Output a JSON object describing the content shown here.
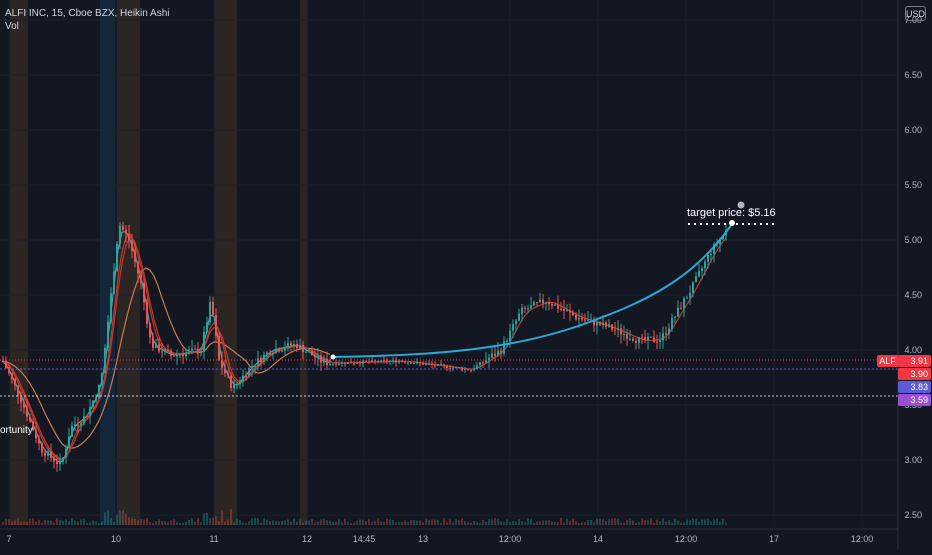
{
  "legend": {
    "symbol_line": "ALFI INC, 15, Cboe BZX, Heikin Ashi",
    "volume_label": "Vol"
  },
  "currency": "USD",
  "price_tags": {
    "symbol": "ALF",
    "last": "3.91",
    "line2": "3.90",
    "line3": "3.83",
    "line4": "3.59"
  },
  "annotation": {
    "target_label": "target price: $5.16",
    "note_fragment": "ortunity"
  },
  "colors": {
    "background": "#131722",
    "up": "#26a69a",
    "down": "#ef5350",
    "projection": "#29a9d6",
    "ma_orange": "#c77b52",
    "ma_red": "#c0392b",
    "ma_teal": "#4c9fa8",
    "tag_red": "#f23645",
    "tag_blue_purple": "#5b5bd6",
    "tag_purple": "#9c4fd6",
    "band_orange": "#6b4a2a",
    "band_blue": "#1e4a7a"
  },
  "chart_data": {
    "type": "candlestick",
    "y_axis": {
      "ticks": [
        "2.50",
        "3.00",
        "3.50",
        "4.00",
        "4.50",
        "5.00",
        "5.50",
        "6.00",
        "6.50",
        "7.00"
      ],
      "range": [
        2.45,
        7.05
      ]
    },
    "x_axis": {
      "ticks": [
        "7",
        "10",
        "11",
        "12",
        "14:45",
        "13",
        "12:00",
        "14",
        "12:00",
        "17",
        "12:00"
      ]
    },
    "target_price": 5.16,
    "levels": [
      3.91,
      3.9,
      3.83,
      3.59
    ],
    "candles_summary": [
      {
        "phase": "decline",
        "start": 3.9,
        "end": 2.95
      },
      {
        "phase": "spike",
        "start": 3.1,
        "end": 5.2
      },
      {
        "phase": "pullback",
        "start": 5.0,
        "end": 3.75
      },
      {
        "phase": "consolidation",
        "start": 3.85,
        "end": 3.95
      },
      {
        "phase": "rally",
        "start": 3.9,
        "end": 4.45
      },
      {
        "phase": "dip",
        "start": 4.45,
        "end": 4.1
      },
      {
        "phase": "projection",
        "start": 4.1,
        "end": 5.16
      }
    ]
  }
}
